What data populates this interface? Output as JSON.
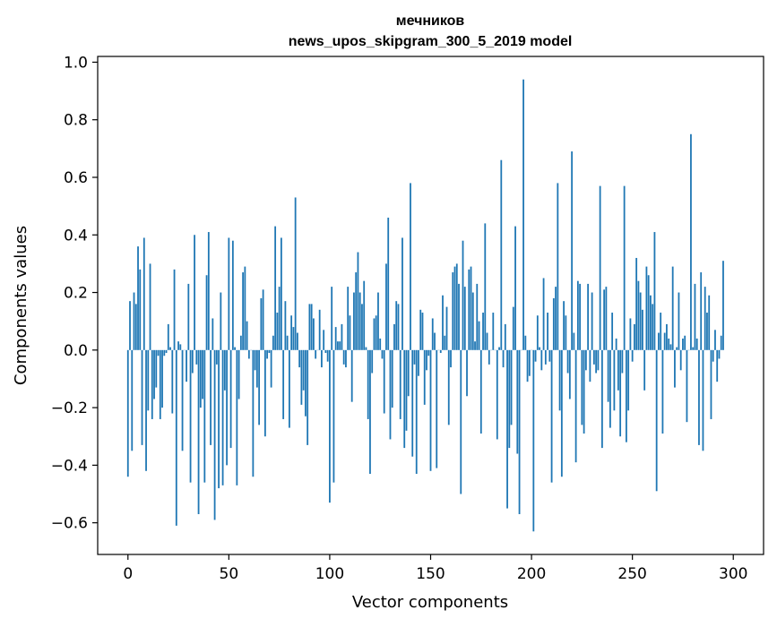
{
  "chart_data": {
    "type": "bar",
    "title_line1": "мечников",
    "title_line2": "news_upos_skipgram_300_5_2019 model",
    "xlabel": "Vector components",
    "ylabel": "Components values",
    "xlim": [
      -15,
      315
    ],
    "ylim": [
      -0.71,
      1.02
    ],
    "xticks": [
      0,
      50,
      100,
      150,
      200,
      250,
      300
    ],
    "yticks": [
      -0.6,
      -0.4,
      -0.2,
      0.0,
      0.2,
      0.4,
      0.6,
      0.8,
      1.0
    ],
    "ytick_labels": [
      "−0.6",
      "−0.4",
      "−0.2",
      "0.0",
      "0.2",
      "0.4",
      "0.6",
      "0.8",
      "1.0"
    ],
    "xtick_labels": [
      "0",
      "50",
      "100",
      "150",
      "200",
      "250",
      "300"
    ],
    "bar_color": "#1f77b4",
    "grid": false,
    "values": [
      -0.44,
      0.17,
      -0.35,
      0.2,
      0.16,
      0.36,
      0.28,
      -0.33,
      0.39,
      -0.42,
      -0.21,
      0.3,
      -0.24,
      -0.17,
      -0.13,
      -0.02,
      -0.24,
      -0.2,
      -0.02,
      -0.01,
      0.09,
      0.01,
      -0.22,
      0.28,
      -0.61,
      0.03,
      0.02,
      -0.35,
      0.0,
      -0.11,
      0.23,
      -0.46,
      -0.08,
      0.4,
      -0.05,
      -0.57,
      -0.2,
      -0.17,
      -0.46,
      0.26,
      0.41,
      -0.33,
      0.11,
      -0.59,
      -0.05,
      -0.48,
      0.2,
      -0.47,
      -0.14,
      -0.4,
      0.39,
      -0.34,
      0.38,
      0.01,
      -0.47,
      -0.17,
      0.05,
      0.27,
      0.29,
      0.1,
      -0.03,
      0.0,
      -0.44,
      -0.07,
      -0.13,
      -0.26,
      0.18,
      0.21,
      -0.3,
      -0.03,
      -0.01,
      -0.13,
      0.05,
      0.43,
      0.13,
      0.22,
      0.39,
      -0.24,
      0.17,
      0.05,
      -0.27,
      0.12,
      0.08,
      0.53,
      0.06,
      -0.06,
      -0.19,
      -0.14,
      -0.23,
      -0.33,
      0.16,
      0.16,
      0.11,
      -0.03,
      0.0,
      0.14,
      -0.06,
      0.07,
      -0.01,
      -0.04,
      -0.53,
      0.22,
      -0.46,
      0.08,
      0.03,
      0.03,
      0.09,
      -0.05,
      -0.06,
      0.22,
      0.12,
      -0.18,
      0.2,
      0.27,
      0.34,
      0.2,
      0.16,
      0.24,
      0.01,
      -0.24,
      -0.43,
      -0.08,
      0.11,
      0.12,
      0.2,
      0.04,
      -0.03,
      -0.22,
      0.3,
      0.46,
      -0.31,
      -0.2,
      0.09,
      0.17,
      0.16,
      -0.24,
      0.39,
      -0.34,
      -0.28,
      -0.16,
      0.58,
      -0.37,
      -0.05,
      -0.43,
      -0.09,
      0.14,
      0.13,
      -0.19,
      -0.07,
      -0.02,
      -0.42,
      0.11,
      0.06,
      -0.41,
      0.0,
      -0.01,
      0.19,
      0.05,
      0.15,
      -0.26,
      -0.06,
      0.27,
      0.29,
      0.3,
      0.23,
      -0.5,
      0.38,
      0.22,
      -0.16,
      0.28,
      0.29,
      0.2,
      0.03,
      0.23,
      0.1,
      -0.29,
      0.13,
      0.44,
      0.06,
      -0.05,
      0.0,
      0.13,
      0.0,
      -0.31,
      0.01,
      0.66,
      -0.06,
      0.09,
      -0.55,
      -0.34,
      -0.26,
      0.15,
      0.43,
      -0.36,
      -0.57,
      0.0,
      0.94,
      0.05,
      -0.11,
      -0.09,
      0.0,
      -0.63,
      -0.04,
      0.12,
      0.01,
      -0.07,
      0.25,
      -0.05,
      0.13,
      -0.04,
      -0.46,
      0.18,
      0.22,
      0.58,
      -0.21,
      -0.44,
      0.17,
      0.12,
      -0.08,
      -0.17,
      0.69,
      0.06,
      -0.39,
      0.24,
      0.23,
      -0.26,
      -0.29,
      -0.07,
      0.23,
      -0.11,
      0.2,
      -0.05,
      -0.08,
      -0.07,
      0.57,
      -0.34,
      0.21,
      0.22,
      -0.18,
      -0.27,
      0.13,
      -0.21,
      0.04,
      -0.14,
      -0.3,
      -0.08,
      0.57,
      -0.32,
      -0.21,
      0.11,
      -0.04,
      0.09,
      0.32,
      0.24,
      0.2,
      0.14,
      -0.14,
      0.29,
      0.26,
      0.19,
      0.16,
      0.41,
      -0.49,
      0.06,
      0.13,
      -0.29,
      0.06,
      0.09,
      0.04,
      0.02,
      0.29,
      -0.13,
      0.01,
      0.2,
      -0.07,
      0.04,
      0.05,
      -0.25,
      0.0,
      0.75,
      0.01,
      0.23,
      0.04,
      -0.33,
      0.27,
      -0.35,
      0.22,
      0.13,
      0.19,
      -0.24,
      -0.04,
      0.07,
      -0.11,
      -0.03,
      0.05,
      0.31
    ]
  }
}
